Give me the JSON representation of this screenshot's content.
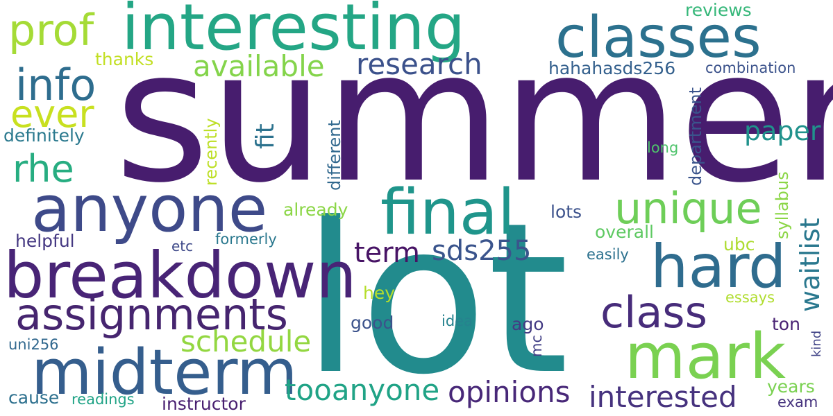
{
  "words": [
    {
      "text": "summer",
      "color": "#471d6e"
    },
    {
      "text": "lot",
      "color": "#228b8d"
    },
    {
      "text": "interesting",
      "color": "#24a685"
    },
    {
      "text": "classes",
      "color": "#2c718e"
    },
    {
      "text": "anyone",
      "color": "#3e4a89"
    },
    {
      "text": "breakdown",
      "color": "#482476"
    },
    {
      "text": "midterm",
      "color": "#355e8d"
    },
    {
      "text": "final",
      "color": "#1f958b"
    },
    {
      "text": "mark",
      "color": "#7ad151"
    },
    {
      "text": "hard",
      "color": "#2f6c8e"
    },
    {
      "text": "assignments",
      "color": "#46256f"
    },
    {
      "text": "unique",
      "color": "#6ece58"
    },
    {
      "text": "class",
      "color": "#472c7a"
    },
    {
      "text": "prof",
      "color": "#a5db36"
    },
    {
      "text": "info",
      "color": "#2e6d8e"
    },
    {
      "text": "ever",
      "color": "#c8e020"
    },
    {
      "text": "rhe",
      "color": "#27ad81"
    },
    {
      "text": "available",
      "color": "#84d44b"
    },
    {
      "text": "research",
      "color": "#3b518b"
    },
    {
      "text": "tooanyone",
      "color": "#20a386"
    },
    {
      "text": "opinions",
      "color": "#482878"
    },
    {
      "text": "interested",
      "color": "#46327e"
    },
    {
      "text": "schedule",
      "color": "#93d741"
    },
    {
      "text": "sds255",
      "color": "#3a548c"
    },
    {
      "text": "term",
      "color": "#471365"
    },
    {
      "text": "paper",
      "color": "#20928c"
    },
    {
      "text": "waitlist",
      "color": "#2a788e"
    },
    {
      "text": "fit",
      "color": "#2c728e"
    },
    {
      "text": "hahahasds256",
      "color": "#34608d"
    },
    {
      "text": "reviews",
      "color": "#35b779"
    },
    {
      "text": "thanks",
      "color": "#c2df23"
    },
    {
      "text": "definitely",
      "color": "#2a798e"
    },
    {
      "text": "combination",
      "color": "#3b528b"
    },
    {
      "text": "department",
      "color": "#3a548c"
    },
    {
      "text": "different",
      "color": "#31688e"
    },
    {
      "text": "recently",
      "color": "#bddf26"
    },
    {
      "text": "long",
      "color": "#4ec36b"
    },
    {
      "text": "syllabus",
      "color": "#8bd646"
    },
    {
      "text": "already",
      "color": "#8bd646"
    },
    {
      "text": "lots",
      "color": "#3b518b"
    },
    {
      "text": "overall",
      "color": "#5ec962"
    },
    {
      "text": "helpful",
      "color": "#453882"
    },
    {
      "text": "etc",
      "color": "#3e4989"
    },
    {
      "text": "formerly",
      "color": "#2a788e"
    },
    {
      "text": "ubc",
      "color": "#addc30"
    },
    {
      "text": "easily",
      "color": "#2c718e"
    },
    {
      "text": "hey",
      "color": "#b5de2b"
    },
    {
      "text": "essays",
      "color": "#b0dd2f"
    },
    {
      "text": "good",
      "color": "#3b528b"
    },
    {
      "text": "idea",
      "color": "#26828e"
    },
    {
      "text": "ago",
      "color": "#443b84"
    },
    {
      "text": "ton",
      "color": "#482173"
    },
    {
      "text": "uni256",
      "color": "#31688e"
    },
    {
      "text": "mc",
      "color": "#424086"
    },
    {
      "text": "kind",
      "color": "#414487"
    },
    {
      "text": "cause",
      "color": "#2d708e"
    },
    {
      "text": "readings",
      "color": "#20a386"
    },
    {
      "text": "instructor",
      "color": "#481f70"
    },
    {
      "text": "years",
      "color": "#7ad151"
    },
    {
      "text": "exam",
      "color": "#46337e"
    }
  ]
}
